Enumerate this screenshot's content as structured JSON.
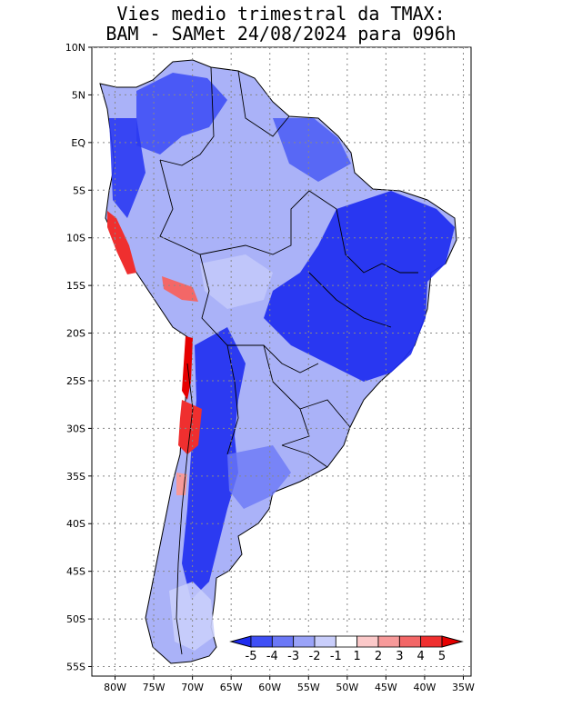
{
  "title": {
    "line1": "Vies medio trimestral da TMAX:",
    "line2": "BAM - SAMet 24/08/2024  para 096h"
  },
  "map": {
    "region": "South America",
    "lon_range": [
      -83,
      -34
    ],
    "lat_range": [
      -56,
      10
    ],
    "lon_ticks": [
      "80W",
      "75W",
      "70W",
      "65W",
      "60W",
      "55W",
      "50W",
      "45W",
      "40W",
      "35W"
    ],
    "lat_ticks": [
      "10N",
      "5N",
      "EQ",
      "5S",
      "10S",
      "15S",
      "20S",
      "25S",
      "30S",
      "35S",
      "40S",
      "45S",
      "50S",
      "55S"
    ],
    "grid": "dotted"
  },
  "colorbar": {
    "labels": [
      "-5",
      "-4",
      "-3",
      "-2",
      "-1",
      "1",
      "2",
      "3",
      "4",
      "5"
    ],
    "colors": [
      "#1e2cf0",
      "#3f4ff5",
      "#6b78f6",
      "#9aa3f8",
      "#c9cefb",
      "#ffffff",
      "#fbc9c9",
      "#f79a9a",
      "#f36767",
      "#ef2f2f",
      "#e60000"
    ],
    "extend": "both"
  }
}
